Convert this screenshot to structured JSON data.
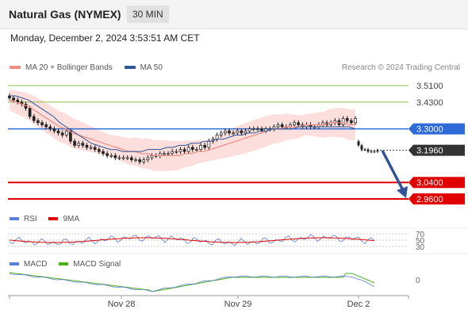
{
  "header": {
    "instrument": "Natural Gas (NYMEX)",
    "timeframe": "30 MIN"
  },
  "datetime": "Monday, December 2, 2024 3:53:51 AM CET",
  "legend": {
    "ma20": {
      "label": "MA 20 + Bollinger Bands",
      "color": "#f28b82"
    },
    "ma50": {
      "label": "MA 50",
      "color": "#2f5597"
    }
  },
  "credit": "Research © 2024 Trading Central",
  "rsi_legend": {
    "rsi": {
      "label": "RSI",
      "color": "#5b7fd6"
    },
    "ma": {
      "label": "9MA",
      "color": "#e00000"
    }
  },
  "macd_legend": {
    "macd": {
      "label": "MACD",
      "color": "#5b7fd6"
    },
    "signal": {
      "label": "MACD Signal",
      "color": "#4caf1f"
    }
  },
  "chart_data": {
    "type": "candlestick",
    "price_levels": [
      {
        "value": 3.51,
        "label": "3.5100",
        "kind": "resistance",
        "color": "#8bc34a"
      },
      {
        "value": 3.43,
        "label": "3.4300",
        "kind": "resistance",
        "color": "#8bc34a"
      },
      {
        "value": 3.3,
        "label": "3.3000",
        "kind": "pivot",
        "color": "#2f6bd6"
      },
      {
        "value": 3.196,
        "label": "3.1960",
        "kind": "last",
        "color": "#333333"
      },
      {
        "value": 3.04,
        "label": "3.0400",
        "kind": "support",
        "color": "#e00000"
      },
      {
        "value": 2.96,
        "label": "2.9600",
        "kind": "support",
        "color": "#e00000"
      }
    ],
    "price_range": [
      2.92,
      3.56
    ],
    "x_labels": [
      "Nov 28",
      "Nov 29",
      "Dec 2"
    ],
    "rsi_levels": [
      "70",
      "50",
      "30"
    ],
    "macd_level": "0",
    "close_path": [
      3.45,
      3.44,
      3.43,
      3.42,
      3.4,
      3.36,
      3.34,
      3.33,
      3.32,
      3.31,
      3.3,
      3.29,
      3.28,
      3.27,
      3.29,
      3.24,
      3.22,
      3.23,
      3.22,
      3.21,
      3.21,
      3.2,
      3.19,
      3.18,
      3.17,
      3.17,
      3.16,
      3.16,
      3.16,
      3.16,
      3.15,
      3.15,
      3.14,
      3.15,
      3.16,
      3.17,
      3.17,
      3.18,
      3.18,
      3.18,
      3.19,
      3.19,
      3.2,
      3.19,
      3.21,
      3.2,
      3.2,
      3.22,
      3.21,
      3.24,
      3.25,
      3.27,
      3.28,
      3.29,
      3.28,
      3.28,
      3.29,
      3.28,
      3.29,
      3.3,
      3.3,
      3.3,
      3.29,
      3.3,
      3.3,
      3.31,
      3.32,
      3.31,
      3.31,
      3.32,
      3.33,
      3.32,
      3.31,
      3.32,
      3.31,
      3.31,
      3.32,
      3.33,
      3.32,
      3.33,
      3.34,
      3.32,
      3.35,
      3.34,
      3.33,
      3.35
    ],
    "gap_close_path": [
      3.22,
      3.2,
      3.2,
      3.19,
      3.19,
      3.19,
      3.196
    ],
    "ma20_path": [
      3.44,
      3.43,
      3.42,
      3.41,
      3.39,
      3.37,
      3.35,
      3.33,
      3.31,
      3.3,
      3.28,
      3.27,
      3.26,
      3.25,
      3.24,
      3.23,
      3.22,
      3.21,
      3.2,
      3.19,
      3.19,
      3.18,
      3.18,
      3.17,
      3.17,
      3.17,
      3.17,
      3.17,
      3.18,
      3.18,
      3.19,
      3.19,
      3.2,
      3.21,
      3.22,
      3.23,
      3.24,
      3.25,
      3.26,
      3.27,
      3.28,
      3.29,
      3.3,
      3.3,
      3.31,
      3.31,
      3.31,
      3.32,
      3.32,
      3.32,
      3.32,
      3.33,
      3.33,
      3.33,
      3.32,
      3.32
    ],
    "ma50_path": [
      3.46,
      3.46,
      3.45,
      3.44,
      3.42,
      3.4,
      3.38,
      3.36,
      3.33,
      3.31,
      3.29,
      3.27,
      3.25,
      3.23,
      3.22,
      3.21,
      3.2,
      3.2,
      3.19,
      3.19,
      3.19,
      3.19,
      3.2,
      3.2,
      3.2,
      3.21,
      3.21,
      3.22,
      3.22,
      3.23,
      3.23,
      3.24,
      3.24,
      3.25,
      3.25,
      3.26,
      3.27,
      3.27,
      3.28,
      3.28,
      3.29,
      3.29,
      3.3,
      3.3,
      3.3,
      3.3,
      3.31,
      3.31,
      3.31,
      3.31,
      3.31,
      3.31,
      3.31,
      3.31,
      3.31,
      3.3
    ]
  }
}
